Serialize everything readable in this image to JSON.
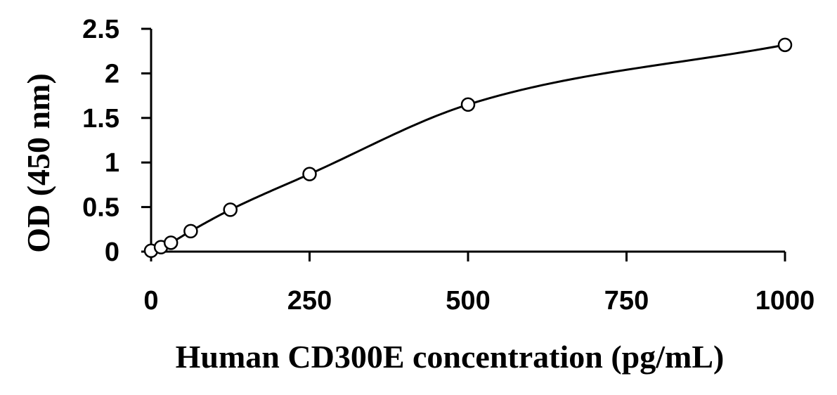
{
  "chart_data": {
    "type": "scatter",
    "xlabel": "Human CD300E concentration (pg/mL)",
    "ylabel": "OD (450 nm)",
    "xlim": [
      0,
      1000
    ],
    "ylim": [
      0,
      2.5
    ],
    "x_ticks": [
      0,
      250,
      500,
      750,
      1000
    ],
    "x_tick_labels": [
      "0",
      "250",
      "500",
      "750",
      "1000"
    ],
    "y_ticks": [
      0,
      0.5,
      1,
      1.5,
      2,
      2.5
    ],
    "y_tick_labels": [
      "0",
      "0.5",
      "1",
      "1.5",
      "2",
      "2.5"
    ],
    "grid": false,
    "legend": "none",
    "series": [
      {
        "marker": "open-circle",
        "fit_line": "smooth",
        "points": [
          {
            "x": 0,
            "y": 0.01
          },
          {
            "x": 15.6,
            "y": 0.05
          },
          {
            "x": 31.25,
            "y": 0.1
          },
          {
            "x": 62.5,
            "y": 0.23
          },
          {
            "x": 125,
            "y": 0.47
          },
          {
            "x": 250,
            "y": 0.87
          },
          {
            "x": 500,
            "y": 1.65
          },
          {
            "x": 1000,
            "y": 2.32
          }
        ]
      }
    ]
  }
}
